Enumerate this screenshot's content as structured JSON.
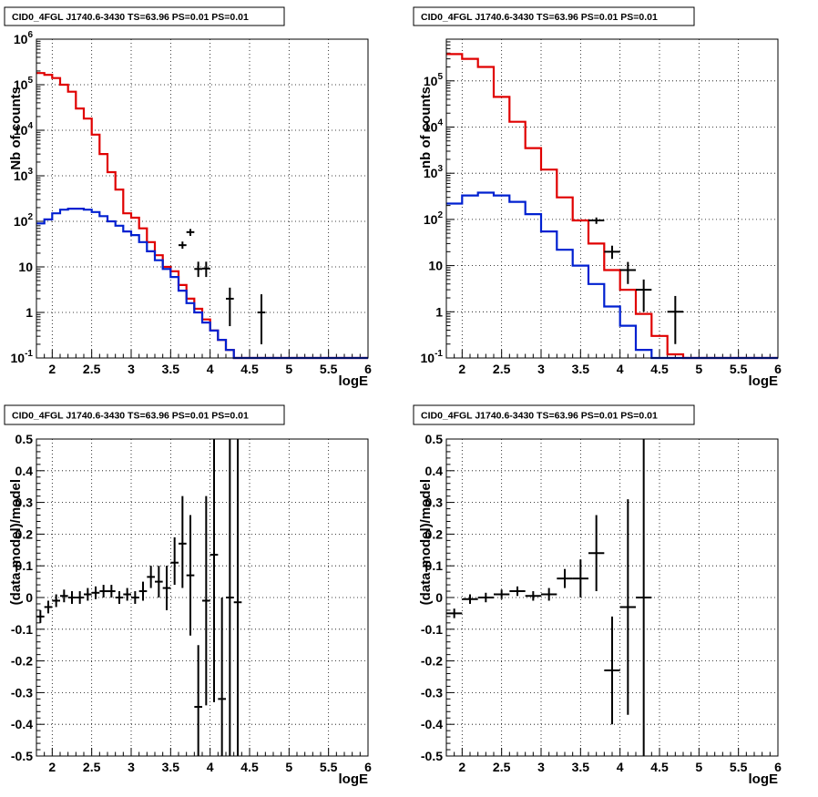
{
  "panel_title": "CID0_4FGL J1740.6-3430 TS=63.96 PS=0.01 PS=0.01",
  "colors": {
    "data": "#000000",
    "total_model": "#e00000",
    "source_model": "#0020d0",
    "grid": "#000000"
  },
  "chart_data": [
    {
      "id": "top-left",
      "type": "histogram",
      "title": "CID0_4FGL J1740.6-3430 TS=63.96 PS=0.01 PS=0.01",
      "xlabel": "logE",
      "ylabel": "Nb of counts",
      "xlim": [
        1.8,
        6
      ],
      "ylim": [
        0.1,
        1000000
      ],
      "ylog": true,
      "grid": true,
      "x_ticks": [
        "2",
        "2.5",
        "3",
        "3.5",
        "4",
        "4.5",
        "5",
        "5.5",
        "6"
      ],
      "y_ticks": [
        "10^{-1}",
        "1",
        "10",
        "10^{2}",
        "10^{3}",
        "10^{4}",
        "10^{5}",
        "10^{6}"
      ],
      "bin_edges": [
        1.8,
        1.9,
        2.0,
        2.1,
        2.2,
        2.3,
        2.4,
        2.5,
        2.6,
        2.7,
        2.8,
        2.9,
        3.0,
        3.1,
        3.2,
        3.3,
        3.4,
        3.5,
        3.6,
        3.7,
        3.8,
        3.9,
        4.0,
        4.1,
        4.2,
        4.3,
        4.4,
        4.5,
        4.6,
        4.7,
        4.8,
        4.9,
        5.0,
        5.1,
        5.2,
        5.3,
        5.4,
        5.5,
        5.6,
        5.7,
        5.8,
        5.9,
        6.0
      ],
      "series": [
        {
          "key": "total_model",
          "values": [
            180000,
            165000,
            140000,
            100000,
            70000,
            30000,
            18000,
            8000,
            3000,
            1200,
            500,
            150,
            120,
            70,
            35,
            18,
            10,
            8,
            4,
            2,
            1.2,
            0.7,
            0.4,
            0.25,
            0.15,
            0.1,
            0.1,
            0.1,
            0.1,
            0.1,
            0.1,
            0.1,
            0.1,
            0.1,
            0.1,
            0.1,
            0.1,
            0.1,
            0.1,
            0.1,
            0.1,
            0.1
          ]
        },
        {
          "key": "source_model",
          "values": [
            90,
            110,
            150,
            180,
            190,
            190,
            180,
            160,
            130,
            100,
            80,
            60,
            50,
            35,
            22,
            14,
            9,
            6,
            3,
            1.6,
            1,
            0.6,
            0.4,
            0.25,
            0.15,
            0.1,
            0.1,
            0.1,
            0.1,
            0.1,
            0.1,
            0.1,
            0.1,
            0.1,
            0.1,
            0.1,
            0.1,
            0.1,
            0.1,
            0.1,
            0.1,
            0.1
          ]
        }
      ],
      "points": [
        {
          "x": 3.95,
          "y": 9.2,
          "ylo": 6,
          "yhi": 13
        },
        {
          "x": 3.85,
          "y": 9,
          "ylo": 6,
          "yhi": 13
        },
        {
          "x": 3.65,
          "y": 30,
          "ylo": 25,
          "yhi": 36
        },
        {
          "x": 3.75,
          "y": 58,
          "ylo": 48,
          "yhi": 68
        },
        {
          "x": 4.25,
          "y": 2,
          "ylo": 0.5,
          "yhi": 3.5
        },
        {
          "x": 4.65,
          "y": 1,
          "ylo": 0.2,
          "yhi": 2.5
        }
      ]
    },
    {
      "id": "top-right",
      "type": "histogram",
      "title": "CID0_4FGL J1740.6-3430 TS=63.96 PS=0.01 PS=0.01",
      "xlabel": "logE",
      "ylabel": "nb of counts",
      "xlim": [
        1.8,
        6
      ],
      "ylim": [
        0.1,
        800000
      ],
      "ylog": true,
      "grid": true,
      "x_ticks": [
        "2",
        "2.5",
        "3",
        "3.5",
        "4",
        "4.5",
        "5",
        "5.5",
        "6"
      ],
      "y_ticks": [
        "10^{-1}",
        "1",
        "10",
        "10^{2}",
        "10^{3}",
        "10^{4}",
        "10^{5}"
      ],
      "bin_edges": [
        1.8,
        2.0,
        2.2,
        2.4,
        2.6,
        2.8,
        3.0,
        3.2,
        3.4,
        3.6,
        3.8,
        4.0,
        4.2,
        4.4,
        4.6,
        4.8,
        5.0,
        5.2,
        5.4,
        5.6,
        5.8,
        6.0
      ],
      "series": [
        {
          "key": "total_model",
          "values": [
            380000,
            300000,
            200000,
            45000,
            13000,
            3500,
            1200,
            300,
            95,
            30,
            8,
            3,
            0.9,
            0.3,
            0.12,
            0.1,
            0.1,
            0.1,
            0.1,
            0.1,
            0.1
          ]
        },
        {
          "key": "source_model",
          "values": [
            220,
            330,
            380,
            330,
            240,
            130,
            55,
            22,
            10,
            4,
            1.3,
            0.5,
            0.15,
            0.1,
            0.1,
            0.1,
            0.1,
            0.1,
            0.1,
            0.1,
            0.1
          ]
        }
      ],
      "points": [
        {
          "x": 3.7,
          "y": 95,
          "ylo": 80,
          "yhi": 110
        },
        {
          "x": 3.9,
          "y": 20,
          "ylo": 14,
          "yhi": 27
        },
        {
          "x": 4.1,
          "y": 8,
          "ylo": 4,
          "yhi": 12
        },
        {
          "x": 4.3,
          "y": 3,
          "ylo": 1,
          "yhi": 5
        },
        {
          "x": 4.7,
          "y": 1,
          "ylo": 0.2,
          "yhi": 2.2
        }
      ]
    },
    {
      "id": "bottom-left",
      "type": "scatter",
      "title": "CID0_4FGL J1740.6-3430 TS=63.96 PS=0.01 PS=0.01",
      "xlabel": "logE",
      "ylabel": "(data-model)/model",
      "xlim": [
        1.8,
        6
      ],
      "ylim": [
        -0.5,
        0.5
      ],
      "grid": true,
      "x_ticks": [
        "2",
        "2.5",
        "3",
        "3.5",
        "4",
        "4.5",
        "5",
        "5.5",
        "6"
      ],
      "y_ticks": [
        "-0.5",
        "-0.4",
        "-0.3",
        "-0.2",
        "-0.1",
        "0",
        "0.1",
        "0.2",
        "0.3",
        "0.4",
        "0.5"
      ],
      "points": [
        {
          "x": 1.85,
          "y": -0.06,
          "ylo": -0.08,
          "yhi": -0.04
        },
        {
          "x": 1.95,
          "y": -0.03,
          "ylo": -0.05,
          "yhi": -0.01
        },
        {
          "x": 2.05,
          "y": -0.01,
          "ylo": -0.03,
          "yhi": 0.01
        },
        {
          "x": 2.15,
          "y": 0.005,
          "ylo": -0.015,
          "yhi": 0.025
        },
        {
          "x": 2.25,
          "y": 0.0,
          "ylo": -0.02,
          "yhi": 0.02
        },
        {
          "x": 2.35,
          "y": 0.0,
          "ylo": -0.02,
          "yhi": 0.02
        },
        {
          "x": 2.45,
          "y": 0.01,
          "ylo": -0.01,
          "yhi": 0.03
        },
        {
          "x": 2.55,
          "y": 0.015,
          "ylo": -0.005,
          "yhi": 0.035
        },
        {
          "x": 2.65,
          "y": 0.02,
          "ylo": 0.0,
          "yhi": 0.04
        },
        {
          "x": 2.75,
          "y": 0.02,
          "ylo": 0.0,
          "yhi": 0.04
        },
        {
          "x": 2.85,
          "y": 0.0,
          "ylo": -0.02,
          "yhi": 0.02
        },
        {
          "x": 2.95,
          "y": 0.01,
          "ylo": -0.01,
          "yhi": 0.03
        },
        {
          "x": 3.05,
          "y": 0.0,
          "ylo": -0.02,
          "yhi": 0.02
        },
        {
          "x": 3.15,
          "y": 0.02,
          "ylo": -0.01,
          "yhi": 0.05
        },
        {
          "x": 3.25,
          "y": 0.065,
          "ylo": 0.03,
          "yhi": 0.1
        },
        {
          "x": 3.35,
          "y": 0.05,
          "ylo": 0.0,
          "yhi": 0.1
        },
        {
          "x": 3.45,
          "y": 0.03,
          "ylo": -0.04,
          "yhi": 0.1
        },
        {
          "x": 3.55,
          "y": 0.11,
          "ylo": 0.04,
          "yhi": 0.19
        },
        {
          "x": 3.65,
          "y": 0.17,
          "ylo": 0.03,
          "yhi": 0.32
        },
        {
          "x": 3.75,
          "y": 0.07,
          "ylo": -0.12,
          "yhi": 0.26
        },
        {
          "x": 3.85,
          "y": -0.345,
          "ylo": -0.5,
          "yhi": -0.15
        },
        {
          "x": 3.95,
          "y": -0.01,
          "ylo": -0.34,
          "yhi": 0.32
        },
        {
          "x": 4.05,
          "y": 0.135,
          "ylo": -0.33,
          "yhi": 0.5
        },
        {
          "x": 4.15,
          "y": -0.32,
          "ylo": -0.5,
          "yhi": 0.0
        },
        {
          "x": 4.25,
          "y": 0.0,
          "ylo": -0.5,
          "yhi": 0.5
        },
        {
          "x": 4.35,
          "y": -0.015,
          "ylo": -0.5,
          "yhi": 0.5
        }
      ]
    },
    {
      "id": "bottom-right",
      "type": "scatter",
      "title": "CID0_4FGL J1740.6-3430 TS=63.96 PS=0.01 PS=0.01",
      "xlabel": "logE",
      "ylabel": "(data-model)/model",
      "xlim": [
        1.8,
        6
      ],
      "ylim": [
        -0.5,
        0.5
      ],
      "grid": true,
      "x_ticks": [
        "2",
        "2.5",
        "3",
        "3.5",
        "4",
        "4.5",
        "5",
        "5.5",
        "6"
      ],
      "y_ticks": [
        "-0.5",
        "-0.4",
        "-0.3",
        "-0.2",
        "-0.1",
        "0",
        "0.1",
        "0.2",
        "0.3",
        "0.4",
        "0.5"
      ],
      "points": [
        {
          "x": 1.9,
          "y": -0.05,
          "ylo": -0.065,
          "yhi": -0.035
        },
        {
          "x": 2.1,
          "y": -0.005,
          "ylo": -0.02,
          "yhi": 0.01
        },
        {
          "x": 2.3,
          "y": 0.0,
          "ylo": -0.015,
          "yhi": 0.015
        },
        {
          "x": 2.5,
          "y": 0.01,
          "ylo": -0.005,
          "yhi": 0.025
        },
        {
          "x": 2.7,
          "y": 0.02,
          "ylo": 0.005,
          "yhi": 0.035
        },
        {
          "x": 2.9,
          "y": 0.005,
          "ylo": -0.01,
          "yhi": 0.02
        },
        {
          "x": 3.1,
          "y": 0.01,
          "ylo": -0.01,
          "yhi": 0.03
        },
        {
          "x": 3.3,
          "y": 0.06,
          "ylo": 0.03,
          "yhi": 0.09
        },
        {
          "x": 3.5,
          "y": 0.06,
          "ylo": 0.0,
          "yhi": 0.12
        },
        {
          "x": 3.7,
          "y": 0.14,
          "ylo": 0.02,
          "yhi": 0.26
        },
        {
          "x": 3.9,
          "y": -0.23,
          "ylo": -0.4,
          "yhi": -0.06
        },
        {
          "x": 4.1,
          "y": -0.03,
          "ylo": -0.37,
          "yhi": 0.31
        },
        {
          "x": 4.3,
          "y": 0.0,
          "ylo": -0.5,
          "yhi": 0.5
        }
      ]
    }
  ]
}
